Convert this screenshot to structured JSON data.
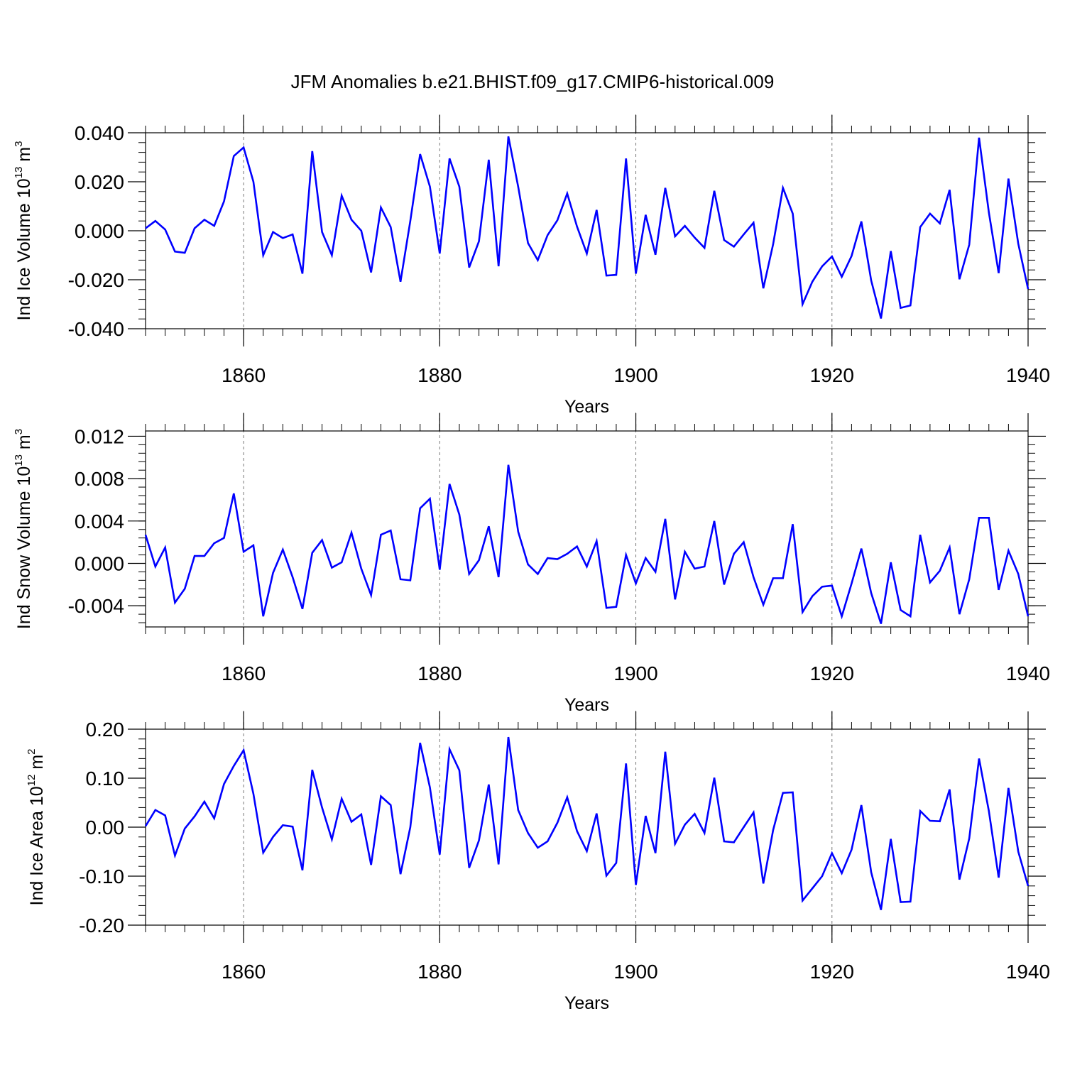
{
  "figure": {
    "title": "JFM Anomalies b.e21.BHIST.f09_g17.CMIP6-historical.009"
  },
  "line_color": "#0000ff",
  "chart_data": [
    {
      "type": "line",
      "ylabel": "Ind Ice Volume 10",
      "ylabel_exp": "13",
      "ylabel_unit": "m",
      "ylabel_unit_exp": "3",
      "xlabel": "Years",
      "xlim": [
        1850,
        1940
      ],
      "ylim": [
        -0.04,
        0.04
      ],
      "yticks": [
        0.04,
        0.02,
        0.0,
        -0.02,
        -0.04
      ],
      "ytick_labels": [
        "0.040",
        "0.020",
        "0.000",
        "-0.020",
        "-0.040"
      ],
      "xticks": [
        1860,
        1880,
        1900,
        1920,
        1940
      ],
      "xtick_labels": [
        "1860",
        "1880",
        "1900",
        "1920",
        "1940"
      ],
      "grid_x": [
        1860,
        1880,
        1900,
        1920
      ],
      "y_minor_step": 0.004,
      "x0": 1850,
      "values": [
        0.001,
        0.004,
        0.0005,
        -0.0085,
        -0.009,
        0.001,
        0.0045,
        0.002,
        0.012,
        0.0305,
        0.034,
        0.02,
        -0.01,
        -0.0005,
        -0.003,
        -0.0015,
        -0.0175,
        0.0325,
        -0.0005,
        -0.01,
        0.0143,
        0.0045,
        0.0,
        -0.017,
        0.0095,
        0.0015,
        -0.0208,
        0.004,
        0.0313,
        0.018,
        -0.0093,
        0.0295,
        0.018,
        -0.015,
        -0.0043,
        0.029,
        -0.0145,
        0.0385,
        0.018,
        -0.005,
        -0.012,
        -0.0018,
        0.0043,
        0.0152,
        0.0017,
        -0.0093,
        0.0085,
        -0.0183,
        -0.018,
        0.0295,
        -0.0175,
        0.0065,
        -0.0098,
        0.0175,
        -0.0023,
        0.002,
        -0.0028,
        -0.007,
        0.0163,
        -0.0038,
        -0.0065,
        -0.0015,
        0.0033,
        -0.0235,
        -0.0055,
        0.0175,
        0.007,
        -0.03,
        -0.0208,
        -0.0145,
        -0.0105,
        -0.0188,
        -0.0103,
        0.0038,
        -0.0203,
        -0.0358,
        -0.0083,
        -0.0315,
        -0.0305,
        0.0015,
        0.007,
        0.003,
        0.0167,
        -0.0198,
        -0.0057,
        0.038,
        0.0075,
        -0.0173,
        0.0213,
        -0.0053,
        -0.0238
      ]
    },
    {
      "type": "line",
      "ylabel": "Ind Snow Volume 10",
      "ylabel_exp": "13",
      "ylabel_unit": "m",
      "ylabel_unit_exp": "3",
      "xlabel": "Years",
      "xlim": [
        1850,
        1940
      ],
      "ylim": [
        -0.006,
        0.0125
      ],
      "yticks": [
        0.012,
        0.008,
        0.004,
        0.0,
        -0.004
      ],
      "ytick_labels": [
        "0.012",
        "0.008",
        "0.004",
        "0.000",
        "-0.004"
      ],
      "xticks": [
        1860,
        1880,
        1900,
        1920,
        1940
      ],
      "xtick_labels": [
        "1860",
        "1880",
        "1900",
        "1920",
        "1940"
      ],
      "grid_x": [
        1860,
        1880,
        1900,
        1920
      ],
      "y_minor_step": 0.0008,
      "x0": 1850,
      "values": [
        0.0027,
        -0.0003,
        0.0015,
        -0.0037,
        -0.0024,
        0.0007,
        0.0007,
        0.0019,
        0.0024,
        0.0066,
        0.0011,
        0.0017,
        -0.005,
        -0.0009,
        0.0013,
        -0.0013,
        -0.0043,
        0.001,
        0.0022,
        -0.0004,
        0.0001,
        0.0029,
        -0.0005,
        -0.003,
        0.0027,
        0.0031,
        -0.0015,
        -0.0016,
        0.0052,
        0.0061,
        -0.0006,
        0.0075,
        0.0046,
        -0.001,
        0.0003,
        0.0035,
        -0.0013,
        0.0093,
        0.003,
        -0.0001,
        -0.001,
        0.0005,
        0.0004,
        0.0009,
        0.0016,
        -0.0003,
        0.0021,
        -0.0042,
        -0.0041,
        0.0008,
        -0.0019,
        0.0005,
        -0.0008,
        0.0042,
        -0.0034,
        0.0011,
        -0.0005,
        -0.0003,
        0.004,
        -0.002,
        0.0009,
        0.002,
        -0.0013,
        -0.0039,
        -0.0014,
        -0.0014,
        0.0037,
        -0.0046,
        -0.0031,
        -0.0022,
        -0.0021,
        -0.005,
        -0.0019,
        0.0014,
        -0.0028,
        -0.0057,
        0.0001,
        -0.0044,
        -0.005,
        0.0027,
        -0.0018,
        -0.0007,
        0.0015,
        -0.0048,
        -0.0015,
        0.0043,
        0.0043,
        -0.0025,
        0.0012,
        -0.001,
        -0.005
      ]
    },
    {
      "type": "line",
      "ylabel": "Ind Ice Area 10",
      "ylabel_exp": "12",
      "ylabel_unit": "m",
      "ylabel_unit_exp": "2",
      "xlabel": "Years",
      "xlim": [
        1850,
        1940
      ],
      "ylim": [
        -0.2,
        0.2
      ],
      "yticks": [
        0.2,
        0.1,
        0.0,
        -0.1,
        -0.2
      ],
      "ytick_labels": [
        "0.20",
        "0.10",
        "0.00",
        "-0.10",
        "-0.20"
      ],
      "xticks": [
        1860,
        1880,
        1900,
        1920,
        1940
      ],
      "xtick_labels": [
        "1860",
        "1880",
        "1900",
        "1920",
        "1940"
      ],
      "grid_x": [
        1860,
        1880,
        1900,
        1920
      ],
      "y_minor_step": 0.02,
      "x0": 1850,
      "values": [
        0.002,
        0.035,
        0.024,
        -0.058,
        -0.003,
        0.022,
        0.052,
        0.018,
        0.088,
        0.125,
        0.157,
        0.068,
        -0.052,
        -0.02,
        0.004,
        0.001,
        -0.088,
        0.117,
        0.04,
        -0.025,
        0.058,
        0.011,
        0.026,
        -0.077,
        0.063,
        0.045,
        -0.096,
        0.0,
        0.172,
        0.081,
        -0.056,
        0.159,
        0.116,
        -0.083,
        -0.027,
        0.087,
        -0.076,
        0.184,
        0.035,
        -0.012,
        -0.042,
        -0.029,
        0.009,
        0.061,
        -0.008,
        -0.049,
        0.028,
        -0.099,
        -0.073,
        0.13,
        -0.118,
        0.023,
        -0.053,
        0.154,
        -0.034,
        0.005,
        0.027,
        -0.012,
        0.101,
        -0.029,
        -0.031,
        0.0,
        0.03,
        -0.115,
        -0.006,
        0.07,
        0.071,
        -0.15,
        -0.125,
        -0.1,
        -0.053,
        -0.094,
        -0.046,
        0.045,
        -0.092,
        -0.169,
        -0.024,
        -0.153,
        -0.152,
        0.033,
        0.013,
        0.012,
        0.077,
        -0.107,
        -0.023,
        0.14,
        0.033,
        -0.103,
        0.08,
        -0.05,
        -0.12
      ]
    }
  ]
}
